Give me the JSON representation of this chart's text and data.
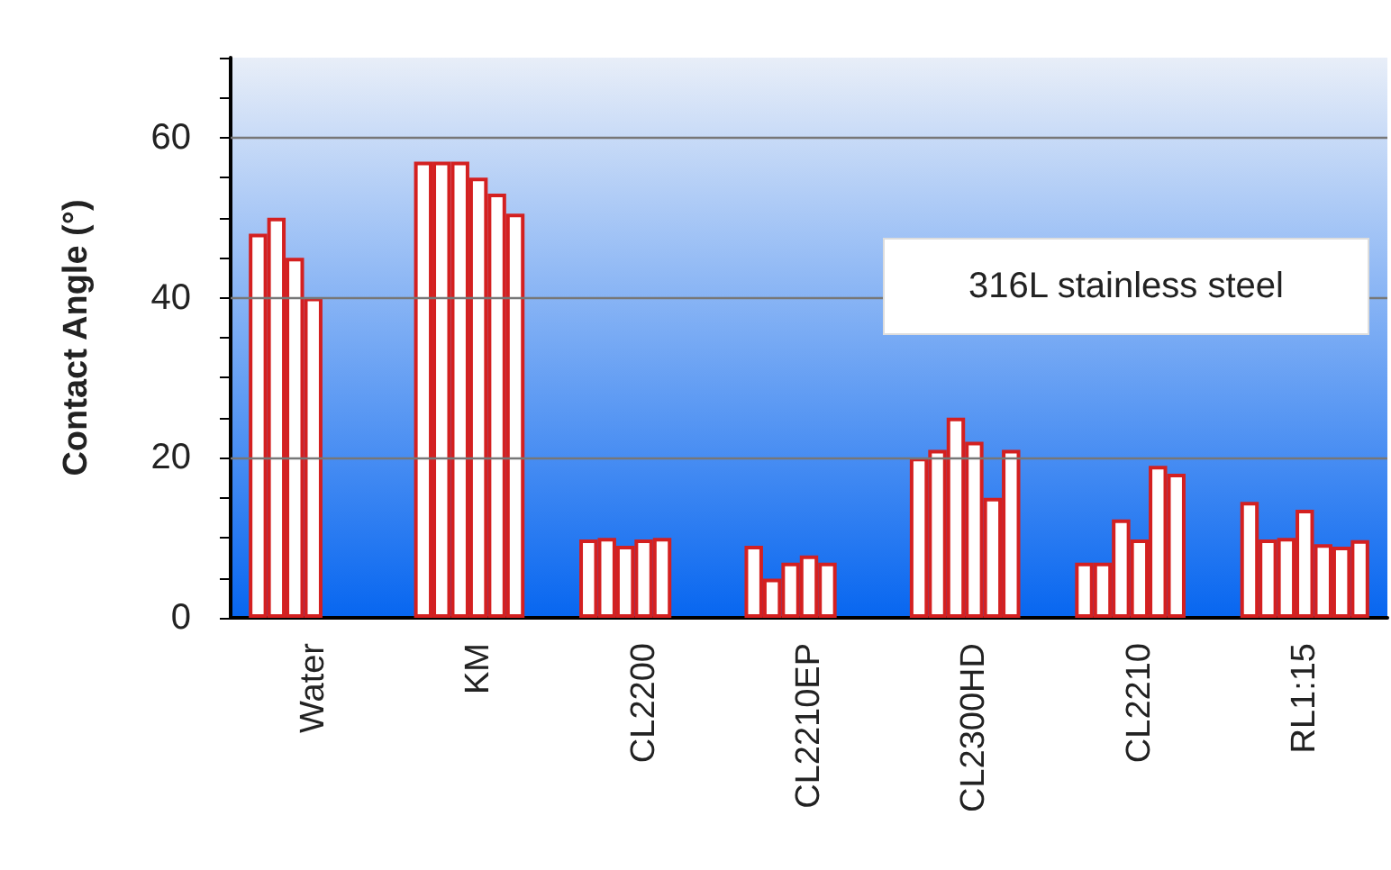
{
  "chart_data": {
    "type": "bar",
    "ylabel": "Contact Angle (°)",
    "categories": [
      "Water",
      "KM",
      "CL2200",
      "CL2210EP",
      "CL2300HD",
      "CL2210",
      "RL1:15"
    ],
    "series": [
      {
        "color": "#d42020",
        "values": [
          48,
          57,
          9.8,
          9,
          20,
          6.9,
          14.5
        ]
      },
      {
        "color": "#d42020",
        "values": [
          50,
          57,
          10,
          4.9,
          21,
          6.9,
          9.8
        ]
      },
      {
        "color": "#d42020",
        "values": [
          45,
          57,
          9,
          6.9,
          25,
          12.3,
          10
        ]
      },
      {
        "color": "#d42020",
        "values": [
          40,
          55,
          9.8,
          7.8,
          22,
          9.8,
          13.5
        ]
      },
      {
        "color": "#d42020",
        "values": [
          null,
          53,
          10,
          6.9,
          15,
          19,
          9.2
        ]
      },
      {
        "color": "#d42020",
        "values": [
          null,
          50.5,
          null,
          null,
          21,
          18,
          8.9
        ]
      },
      {
        "color": "#d42020",
        "values": [
          null,
          null,
          null,
          null,
          null,
          null,
          9.7
        ]
      }
    ],
    "ylim": [
      0,
      70
    ],
    "yticks": [
      0,
      {
        "value": 5,
        "label": null
      },
      {
        "value": 10,
        "label": null
      },
      {
        "value": 15,
        "label": null
      },
      20,
      {
        "value": 25,
        "label": null
      },
      {
        "value": 30,
        "label": null
      },
      {
        "value": 35,
        "label": null
      },
      40,
      {
        "value": 45,
        "label": null
      },
      {
        "value": 50,
        "label": null
      },
      {
        "value": 55,
        "label": null
      },
      60,
      {
        "value": 65,
        "label": null
      },
      {
        "value": 70,
        "label": null
      }
    ],
    "grid": "y",
    "annotations": [
      "316L stainless steel"
    ]
  }
}
